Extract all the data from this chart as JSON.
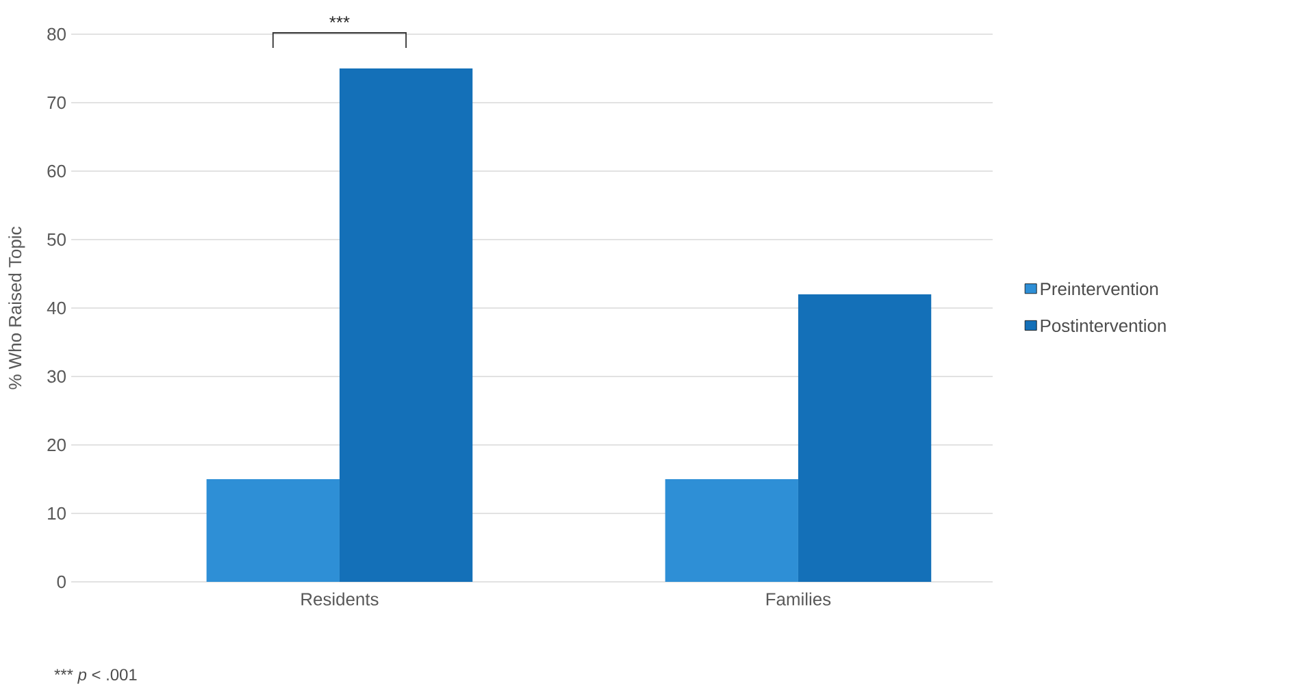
{
  "chart_data": {
    "type": "bar",
    "ylabel": "% Who Raised Topic",
    "categories": [
      "Residents",
      "Families"
    ],
    "series": [
      {
        "name": "Preintervention",
        "color": "#2e8fd6",
        "values": [
          15,
          15
        ]
      },
      {
        "name": "Postintervention",
        "color": "#1470b8",
        "values": [
          75,
          42
        ]
      }
    ],
    "ylim": [
      0,
      80
    ],
    "yticks": [
      0,
      10,
      20,
      30,
      40,
      50,
      60,
      70,
      80
    ],
    "grid": "y",
    "legend": "right",
    "annotations": [
      "***",
      "*** *p* < .001"
    ]
  }
}
